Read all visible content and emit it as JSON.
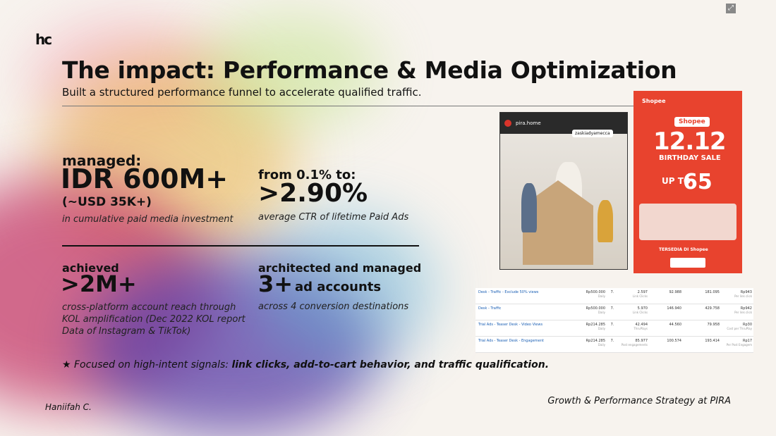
{
  "logo": "hc",
  "title": "The impact: Performance & Media Optimization",
  "subtitle": "Built a structured performance funnel to accelerate qualified traffic.",
  "stats": {
    "managed": {
      "label": "managed:",
      "value": "IDR 600M+",
      "sub": "(~USD 35K+)",
      "desc": "in cumulative paid media investment"
    },
    "ctr": {
      "label": "from 0.1% to:",
      "value": ">2.90%",
      "desc": "average CTR of lifetime Paid Ads"
    },
    "reach": {
      "label": "achieved",
      "value": ">2M+",
      "desc": "cross-platform account  reach through KOL amplification (Dec 2022 KOL report Data of Instagram & TikTok)"
    },
    "accounts": {
      "label": "architected and managed",
      "value": "3+",
      "value_suffix": "ad accounts",
      "desc": "across 4 conversion destinations"
    }
  },
  "footnote": {
    "prefix": "★ Focused on high-intent signals: ",
    "bold": "link clicks, add-to-cart behavior, and traffic qualification."
  },
  "author": "Haniifah C.",
  "credit": "Growth & Performance Strategy at PIRA",
  "instagram": {
    "account": "pira.home",
    "tag": "zaskiadyamecca"
  },
  "shopee": {
    "brand": "Shopee",
    "event": "12.12",
    "event_sub": "BIRTHDAY SALE",
    "up_to": "UP TO",
    "discount": "65",
    "available": "TERSEDIA DI",
    "available_brand": "Shopee"
  },
  "ads_table": [
    {
      "name": "Desk - Traffic - Exclude 50% views",
      "budget": "Rp500.000",
      "budget_sub": "Daily",
      "n": "7.",
      "v1": "2.597",
      "v1_sub": "Link Clicks",
      "v2": "92.988",
      "v3": "181.095",
      "v4": "Rp943",
      "v4_sub": "Per link click"
    },
    {
      "name": "Desk - Traffic",
      "budget": "Rp500.000",
      "budget_sub": "Daily",
      "n": "7.",
      "v1": "5.970",
      "v1_sub": "Link Clicks",
      "v2": "146.940",
      "v3": "429.758",
      "v4": "Rp942",
      "v4_sub": "Per link click"
    },
    {
      "name": "Trial Ads - Teaser Desk - Video Views",
      "budget": "Rp214.285",
      "budget_sub": "Daily",
      "n": "7.",
      "v1": "42.494",
      "v1_sub": "ThruPlays",
      "v2": "44.560",
      "v3": "79.958",
      "v4": "Rp30",
      "v4_sub": "Cost per ThruPlay"
    },
    {
      "name": "Trial Ads - Teaser Desk - Engagement",
      "budget": "Rp214.285",
      "budget_sub": "Daily",
      "n": "7.",
      "v1": "85.977",
      "v1_sub": "Post engagements",
      "v2": "100.574",
      "v3": "193.414",
      "v4": "Rp17",
      "v4_sub": "Per Post Engagem"
    }
  ]
}
